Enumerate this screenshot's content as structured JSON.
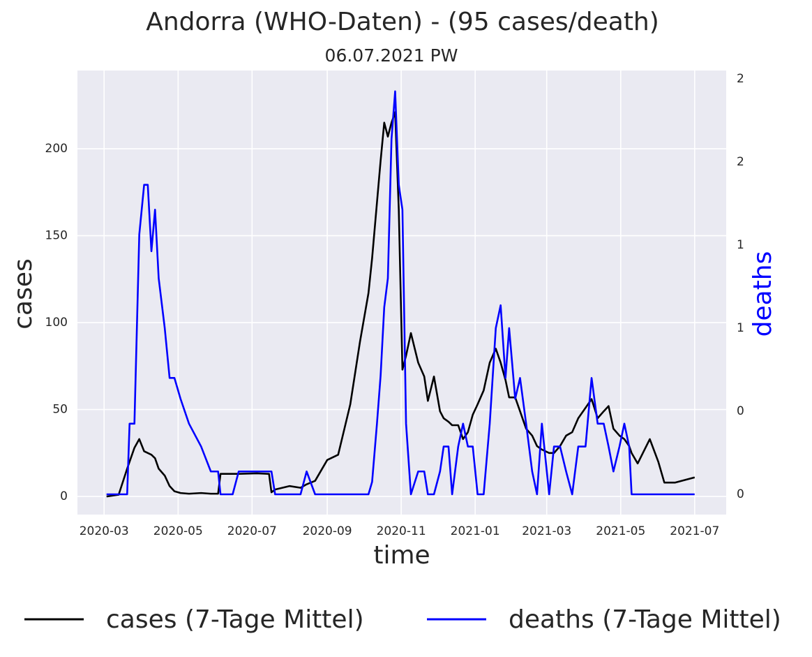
{
  "chart_data": {
    "type": "line",
    "title": "Andorra (WHO-Daten) - (95 cases/death)",
    "subtitle": "06.07.2021 PW",
    "x_label": "time",
    "y_label": "cases",
    "y2_label": "deaths",
    "x": [
      "2020-03-03",
      "2020-03-13",
      "2020-03-20",
      "2020-03-22",
      "2020-03-26",
      "2020-03-30",
      "2020-04-03",
      "2020-04-06",
      "2020-04-09",
      "2020-04-12",
      "2020-04-15",
      "2020-04-20",
      "2020-04-24",
      "2020-04-28",
      "2020-05-03",
      "2020-05-10",
      "2020-05-20",
      "2020-05-28",
      "2020-06-03",
      "2020-06-05",
      "2020-06-15",
      "2020-06-20",
      "2020-07-05",
      "2020-07-15",
      "2020-07-17",
      "2020-07-20",
      "2020-08-01",
      "2020-08-10",
      "2020-08-15",
      "2020-08-22",
      "2020-09-01",
      "2020-09-10",
      "2020-09-20",
      "2020-09-28",
      "2020-10-05",
      "2020-10-08",
      "2020-10-12",
      "2020-10-15",
      "2020-10-18",
      "2020-10-21",
      "2020-10-24",
      "2020-10-27",
      "2020-10-30",
      "2020-11-02",
      "2020-11-05",
      "2020-11-09",
      "2020-11-15",
      "2020-11-20",
      "2020-11-23",
      "2020-11-28",
      "2020-12-03",
      "2020-12-06",
      "2020-12-10",
      "2020-12-13",
      "2020-12-18",
      "2020-12-22",
      "2020-12-26",
      "2020-12-30",
      "2021-01-03",
      "2021-01-08",
      "2021-01-13",
      "2021-01-18",
      "2021-01-22",
      "2021-01-26",
      "2021-01-29",
      "2021-02-03",
      "2021-02-07",
      "2021-02-12",
      "2021-02-17",
      "2021-02-21",
      "2021-02-25",
      "2021-03-03",
      "2021-03-07",
      "2021-03-12",
      "2021-03-17",
      "2021-03-22",
      "2021-03-27",
      "2021-04-02",
      "2021-04-07",
      "2021-04-12",
      "2021-04-17",
      "2021-04-21",
      "2021-04-25",
      "2021-04-30",
      "2021-05-04",
      "2021-05-08",
      "2021-05-10",
      "2021-05-15",
      "2021-05-25",
      "2021-06-01",
      "2021-06-06",
      "2021-06-15",
      "2021-07-01"
    ],
    "series": [
      {
        "name": "cases (7-Tage Mittel)",
        "color": "#000000",
        "values": [
          0,
          1,
          16,
          20,
          28,
          33,
          26,
          25,
          24,
          22,
          16,
          12,
          6,
          3,
          2,
          1.6,
          2,
          1.6,
          1.6,
          13,
          13,
          13,
          13.3,
          13,
          2.4,
          4,
          6,
          5,
          7,
          9,
          21,
          24,
          53,
          89,
          117,
          137,
          169,
          193,
          215,
          207,
          215,
          221,
          165,
          73,
          81,
          94,
          77,
          69,
          55,
          69,
          49,
          45,
          43,
          41,
          41,
          33,
          37,
          47,
          53,
          61,
          77,
          85,
          77,
          67,
          57,
          57,
          49,
          39,
          35,
          29,
          27,
          25,
          25,
          29,
          35,
          37,
          45,
          51,
          56,
          45,
          49,
          52,
          39,
          35,
          33,
          29,
          25,
          19,
          33,
          20,
          8,
          8,
          11
        ]
      },
      {
        "name": "deaths (7-Tage Mittel)",
        "color": "#0000ff",
        "axis": "y2",
        "values": [
          0,
          0,
          0,
          0.34,
          0.34,
          1.25,
          1.49,
          1.49,
          1.17,
          1.37,
          1.04,
          0.8,
          0.56,
          0.56,
          0.46,
          0.34,
          0.23,
          0.11,
          0.11,
          0,
          0,
          0.11,
          0.11,
          0.11,
          0.11,
          0,
          0,
          0,
          0.11,
          0,
          0,
          0,
          0,
          0,
          0,
          0.06,
          0.34,
          0.57,
          0.9,
          1.04,
          1.71,
          1.94,
          1.49,
          1.37,
          0.34,
          0,
          0.11,
          0.11,
          0,
          0,
          0.11,
          0.23,
          0.23,
          0,
          0.23,
          0.34,
          0.23,
          0.23,
          0,
          0,
          0.34,
          0.8,
          0.91,
          0.56,
          0.8,
          0.46,
          0.56,
          0.34,
          0.11,
          0,
          0.34,
          0,
          0.23,
          0.23,
          0.11,
          0,
          0.23,
          0.23,
          0.56,
          0.34,
          0.34,
          0.23,
          0.11,
          0.23,
          0.34,
          0.23,
          0,
          0,
          0,
          0,
          0,
          0,
          0
        ]
      }
    ],
    "xlim": [
      "2020-02-08",
      "2021-07-27"
    ],
    "xticks": [
      {
        "value": "2020-03-01",
        "label": "2020-03"
      },
      {
        "value": "2020-05-01",
        "label": "2020-05"
      },
      {
        "value": "2020-07-01",
        "label": "2020-07"
      },
      {
        "value": "2020-09-01",
        "label": "2020-09"
      },
      {
        "value": "2020-11-01",
        "label": "2020-11"
      },
      {
        "value": "2021-01-01",
        "label": "2021-01"
      },
      {
        "value": "2021-03-01",
        "label": "2021-03"
      },
      {
        "value": "2021-05-01",
        "label": "2021-05"
      },
      {
        "value": "2021-07-01",
        "label": "2021-07"
      }
    ],
    "ylim": [
      -10.4,
      245
    ],
    "yticks": [
      0,
      50,
      100,
      150,
      200
    ],
    "y2lim": [
      -0.0975,
      2.04
    ],
    "y2ticks": [
      0,
      {
        "value": 0.4,
        "label": "0"
      },
      {
        "value": 0.8,
        "label": "1"
      },
      {
        "value": 1.2,
        "label": "1"
      },
      {
        "value": 1.6,
        "label": "2"
      },
      {
        "value": 2.0,
        "label": "2"
      }
    ],
    "y2_color": "#0000ff",
    "background": "#eaeaf2",
    "grid": true
  }
}
